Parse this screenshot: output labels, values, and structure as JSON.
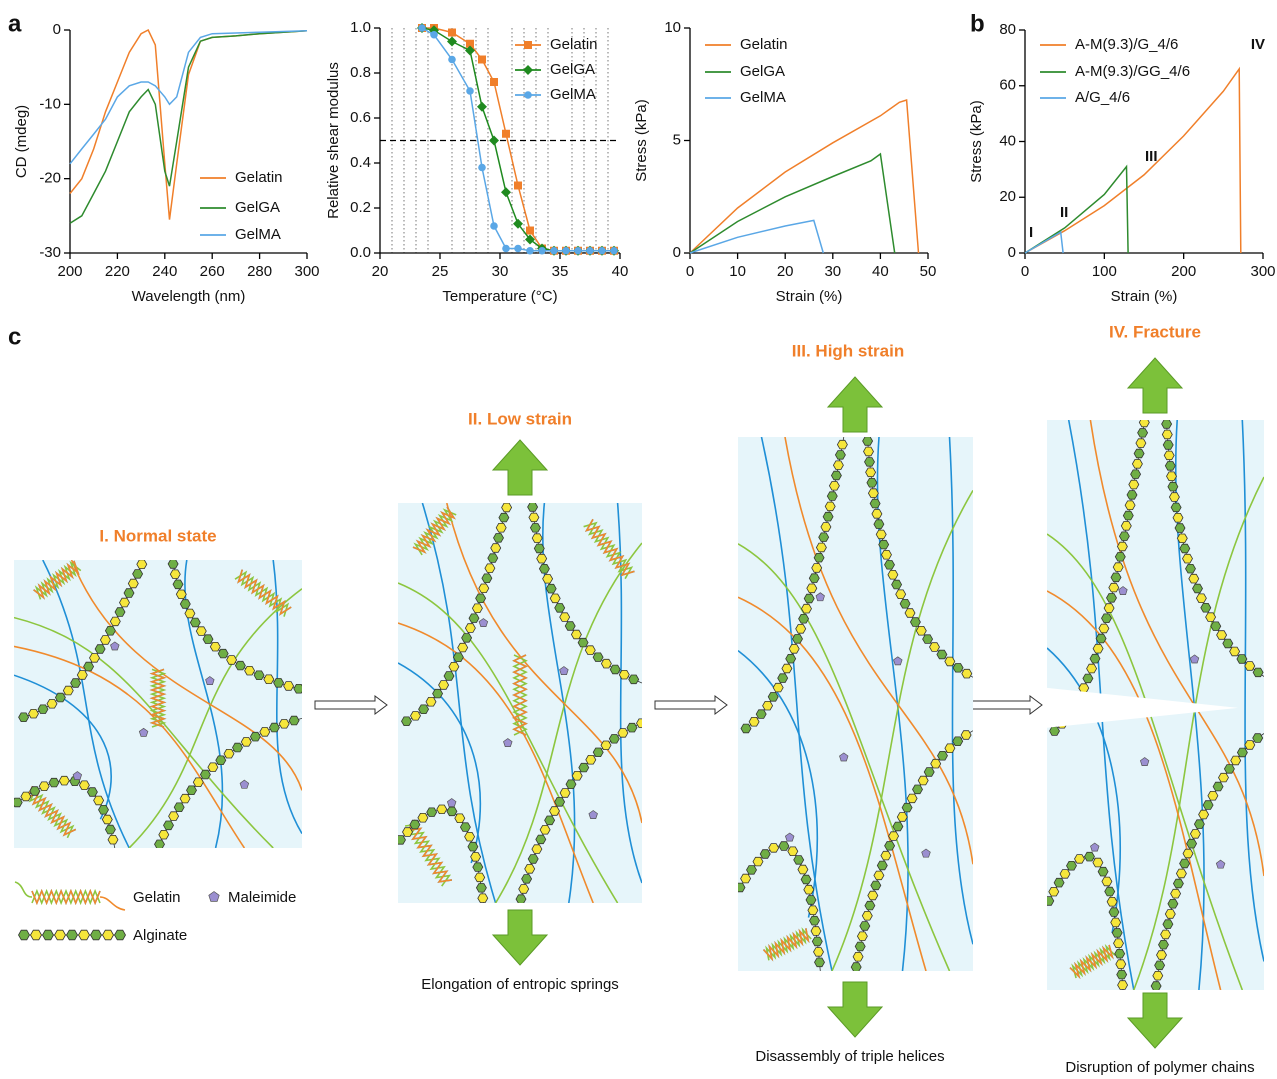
{
  "chart_data": [
    {
      "type": "line",
      "x_label": "Wavelength (nm)",
      "y_label": "CD (mdeg)",
      "x": [
        200,
        205,
        210,
        215,
        220,
        225,
        230,
        233,
        236,
        240,
        242,
        245,
        250,
        255,
        260,
        270,
        280,
        290,
        300
      ],
      "xlim": [
        200,
        300
      ],
      "xticks": [
        200,
        220,
        240,
        260,
        280,
        300
      ],
      "ylim": [
        -30,
        0
      ],
      "yticks": [
        -30,
        -20,
        -10,
        0
      ],
      "legend": "lower right",
      "series": [
        {
          "name": "Gelatin",
          "color": "#f07f2a",
          "values": [
            -22,
            -20,
            -16,
            -11,
            -7,
            -3,
            -0.5,
            0,
            -2,
            -18,
            -25.5,
            -18,
            -6,
            -1.5,
            -1,
            -0.8,
            -0.5,
            -0.3,
            -0.1
          ]
        },
        {
          "name": "GelGA",
          "color": "#2e8b2e",
          "values": [
            -26,
            -25,
            -22,
            -19,
            -15,
            -11,
            -9,
            -8,
            -10,
            -19,
            -21,
            -15,
            -5,
            -1.5,
            -1,
            -0.8,
            -0.5,
            -0.3,
            -0.1
          ]
        },
        {
          "name": "GelMA",
          "color": "#5aa7e6",
          "values": [
            -18,
            -16,
            -14,
            -12,
            -9,
            -7.5,
            -7,
            -7,
            -7.5,
            -9,
            -10,
            -9,
            -3,
            -1,
            -0.5,
            -0.4,
            -0.3,
            -0.2,
            -0.1
          ]
        }
      ]
    },
    {
      "type": "line",
      "x_label": "Temperature (°C)",
      "y_label": "Relative shear modulus",
      "x": [
        23.5,
        24.5,
        26,
        27.5,
        28.5,
        29.5,
        30.5,
        31.5,
        32.5,
        33.5,
        34.5,
        35.5,
        36.5,
        37.5,
        38.5,
        39.5
      ],
      "xlim": [
        20,
        40
      ],
      "xticks": [
        20,
        25,
        30,
        35,
        40
      ],
      "x_minor_ticks": [
        21,
        22,
        23,
        24,
        26,
        27,
        28,
        29,
        31,
        32,
        33,
        34,
        36,
        37,
        38,
        39
      ],
      "ylim": [
        0,
        1
      ],
      "yticks": [
        {
          "value": 0,
          "label": "0.0"
        },
        0.2,
        0.4,
        0.6,
        0.8,
        {
          "value": 1,
          "label": "1.0"
        }
      ],
      "reference_line": 0.5,
      "legend": "upper right",
      "series": [
        {
          "name": "Gelatin",
          "color": "#f07f2a",
          "marker": "square",
          "values": [
            1,
            1,
            0.98,
            0.93,
            0.86,
            0.76,
            0.53,
            0.3,
            0.1,
            0.02,
            0.01,
            0.01,
            0.01,
            0.01,
            0.01,
            0.01
          ]
        },
        {
          "name": "GelGA",
          "color": "#1f8a1f",
          "marker": "diamond",
          "values": [
            1,
            0.99,
            0.94,
            0.9,
            0.65,
            0.5,
            0.27,
            0.13,
            0.06,
            0.02,
            0.01,
            0.01,
            0.01,
            0.01,
            0.01,
            0.01
          ]
        },
        {
          "name": "GelMA",
          "color": "#5aa7e6",
          "marker": "circle",
          "values": [
            1,
            0.97,
            0.86,
            0.72,
            0.38,
            0.12,
            0.02,
            0.02,
            0.01,
            0.01,
            0.01,
            0.01,
            0.01,
            0.01,
            0.01,
            0.01
          ]
        }
      ]
    },
    {
      "type": "line",
      "x_label": "Strain (%)",
      "y_label": "Stress (kPa)",
      "xlim": [
        0,
        50
      ],
      "xticks": [
        0,
        10,
        20,
        30,
        40,
        50
      ],
      "ylim": [
        0,
        10
      ],
      "yticks": [
        0,
        5,
        10
      ],
      "legend": "upper left",
      "series": [
        {
          "name": "Gelatin",
          "color": "#f07f2a",
          "x": [
            0,
            10,
            20,
            30,
            40,
            44,
            45.5,
            48
          ],
          "values": [
            0,
            2,
            3.6,
            4.9,
            6.1,
            6.7,
            6.8,
            0
          ]
        },
        {
          "name": "GelGA",
          "color": "#2e8b2e",
          "x": [
            0,
            10,
            20,
            30,
            38,
            40,
            43
          ],
          "values": [
            0,
            1.4,
            2.5,
            3.4,
            4.1,
            4.4,
            0
          ]
        },
        {
          "name": "GelMA",
          "color": "#5aa7e6",
          "x": [
            0,
            10,
            20,
            26,
            28
          ],
          "values": [
            0,
            0.7,
            1.2,
            1.45,
            0
          ]
        }
      ]
    },
    {
      "type": "line",
      "x_label": "Strain (%)",
      "y_label": "Stress (kPa)",
      "xlim": [
        0,
        300
      ],
      "xticks": [
        0,
        100,
        200,
        300
      ],
      "ylim": [
        0,
        80
      ],
      "yticks": [
        0,
        20,
        40,
        60,
        80
      ],
      "legend": "upper left",
      "annotations": [
        "I",
        "II",
        "III",
        "IV"
      ],
      "annotation_color": "#f07f2a",
      "series": [
        {
          "name": "A-M(9.3)/G_4/6",
          "color": "#f07f2a",
          "x": [
            0,
            50,
            100,
            150,
            200,
            250,
            270,
            272
          ],
          "values": [
            0,
            8,
            17,
            28,
            42,
            58,
            66,
            0
          ]
        },
        {
          "name": "A-M(9.3)/GG_4/6",
          "color": "#2e8b2e",
          "x": [
            0,
            50,
            100,
            128,
            130
          ],
          "values": [
            0,
            9,
            21,
            31,
            0
          ]
        },
        {
          "name": "A/G_4/6",
          "color": "#5aa7e6",
          "x": [
            0,
            45,
            48
          ],
          "values": [
            0,
            7.5,
            0
          ]
        }
      ]
    }
  ],
  "diagram": {
    "panel_labels": [
      "a",
      "b",
      "c"
    ],
    "stages": [
      {
        "title": "I. Normal state"
      },
      {
        "title": "II. Low strain",
        "caption": "Elongation of entropic springs"
      },
      {
        "title": "III. High strain",
        "caption": "Disassembly of triple helices"
      },
      {
        "title": "IV. Fracture",
        "caption": "Disruption of polymer chains"
      }
    ],
    "legend": {
      "gelatin": "Gelatin",
      "maleimide": "Maleimide",
      "alginate": "Alginate"
    }
  }
}
